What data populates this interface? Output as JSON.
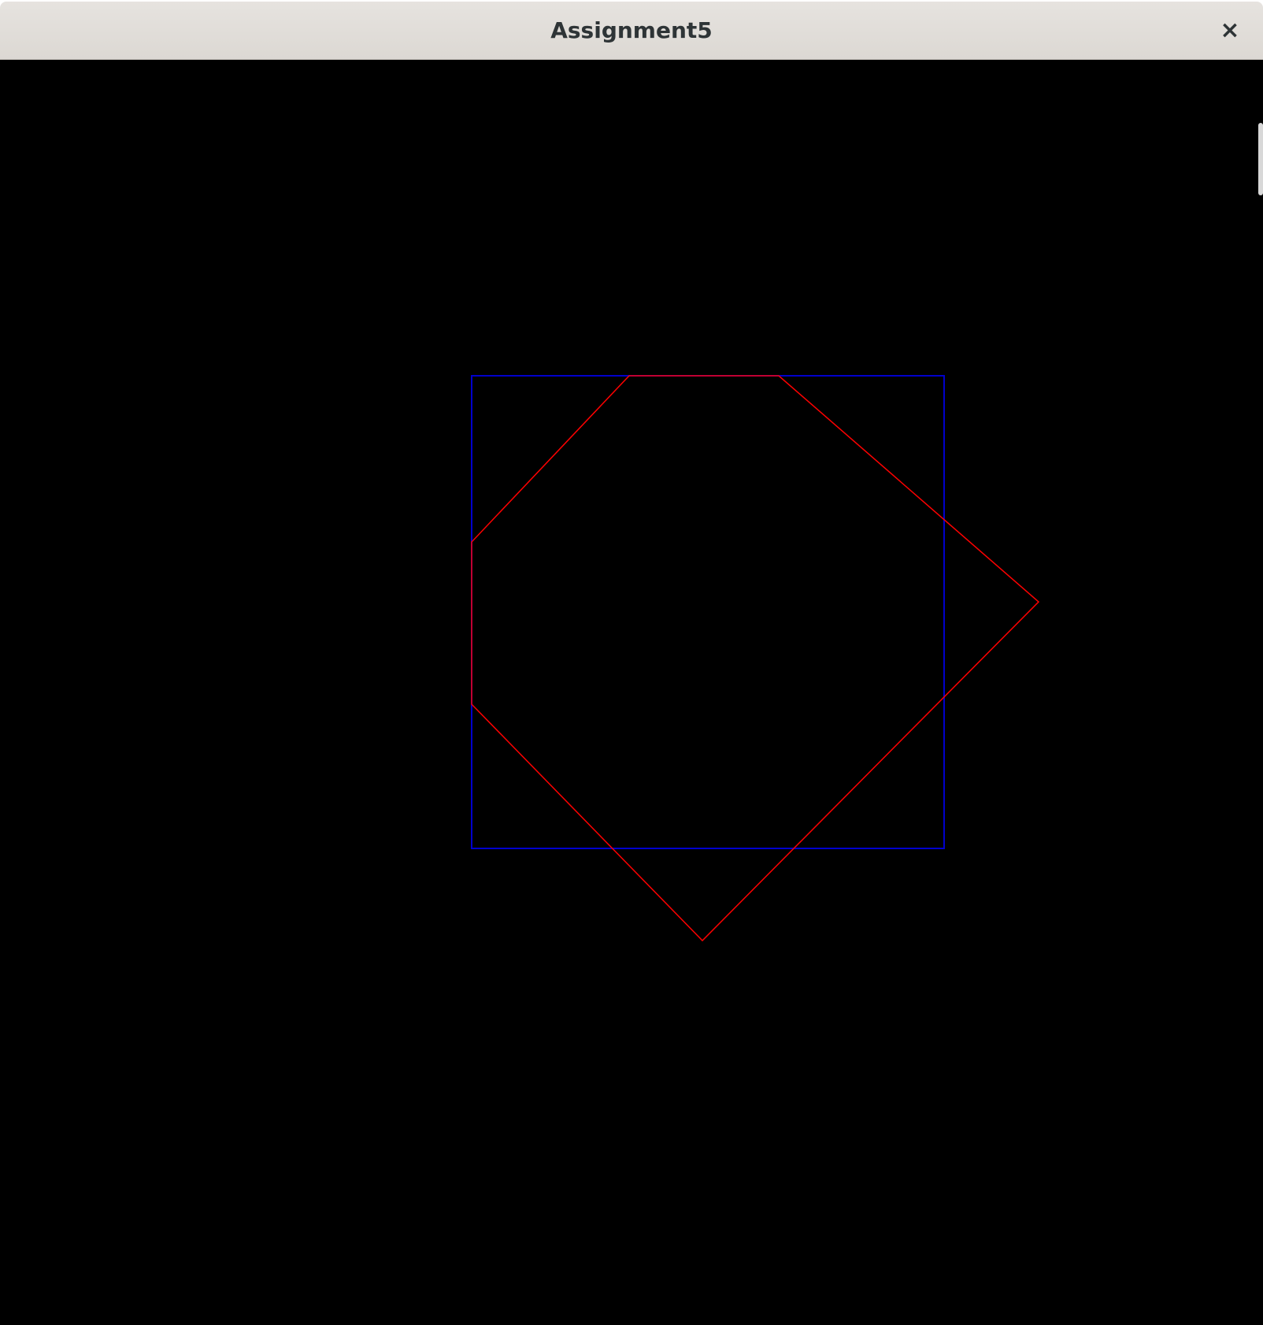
{
  "window": {
    "title": "Assignment5",
    "close_glyph": "×"
  },
  "canvas": {
    "background": "#000000",
    "shapes": [
      {
        "name": "blue-square",
        "kind": "polygon",
        "color": "#0000cc"
      },
      {
        "name": "red-polygon",
        "kind": "polygon",
        "color": "#ff0000"
      }
    ]
  },
  "icons": {
    "close": "close-icon"
  }
}
